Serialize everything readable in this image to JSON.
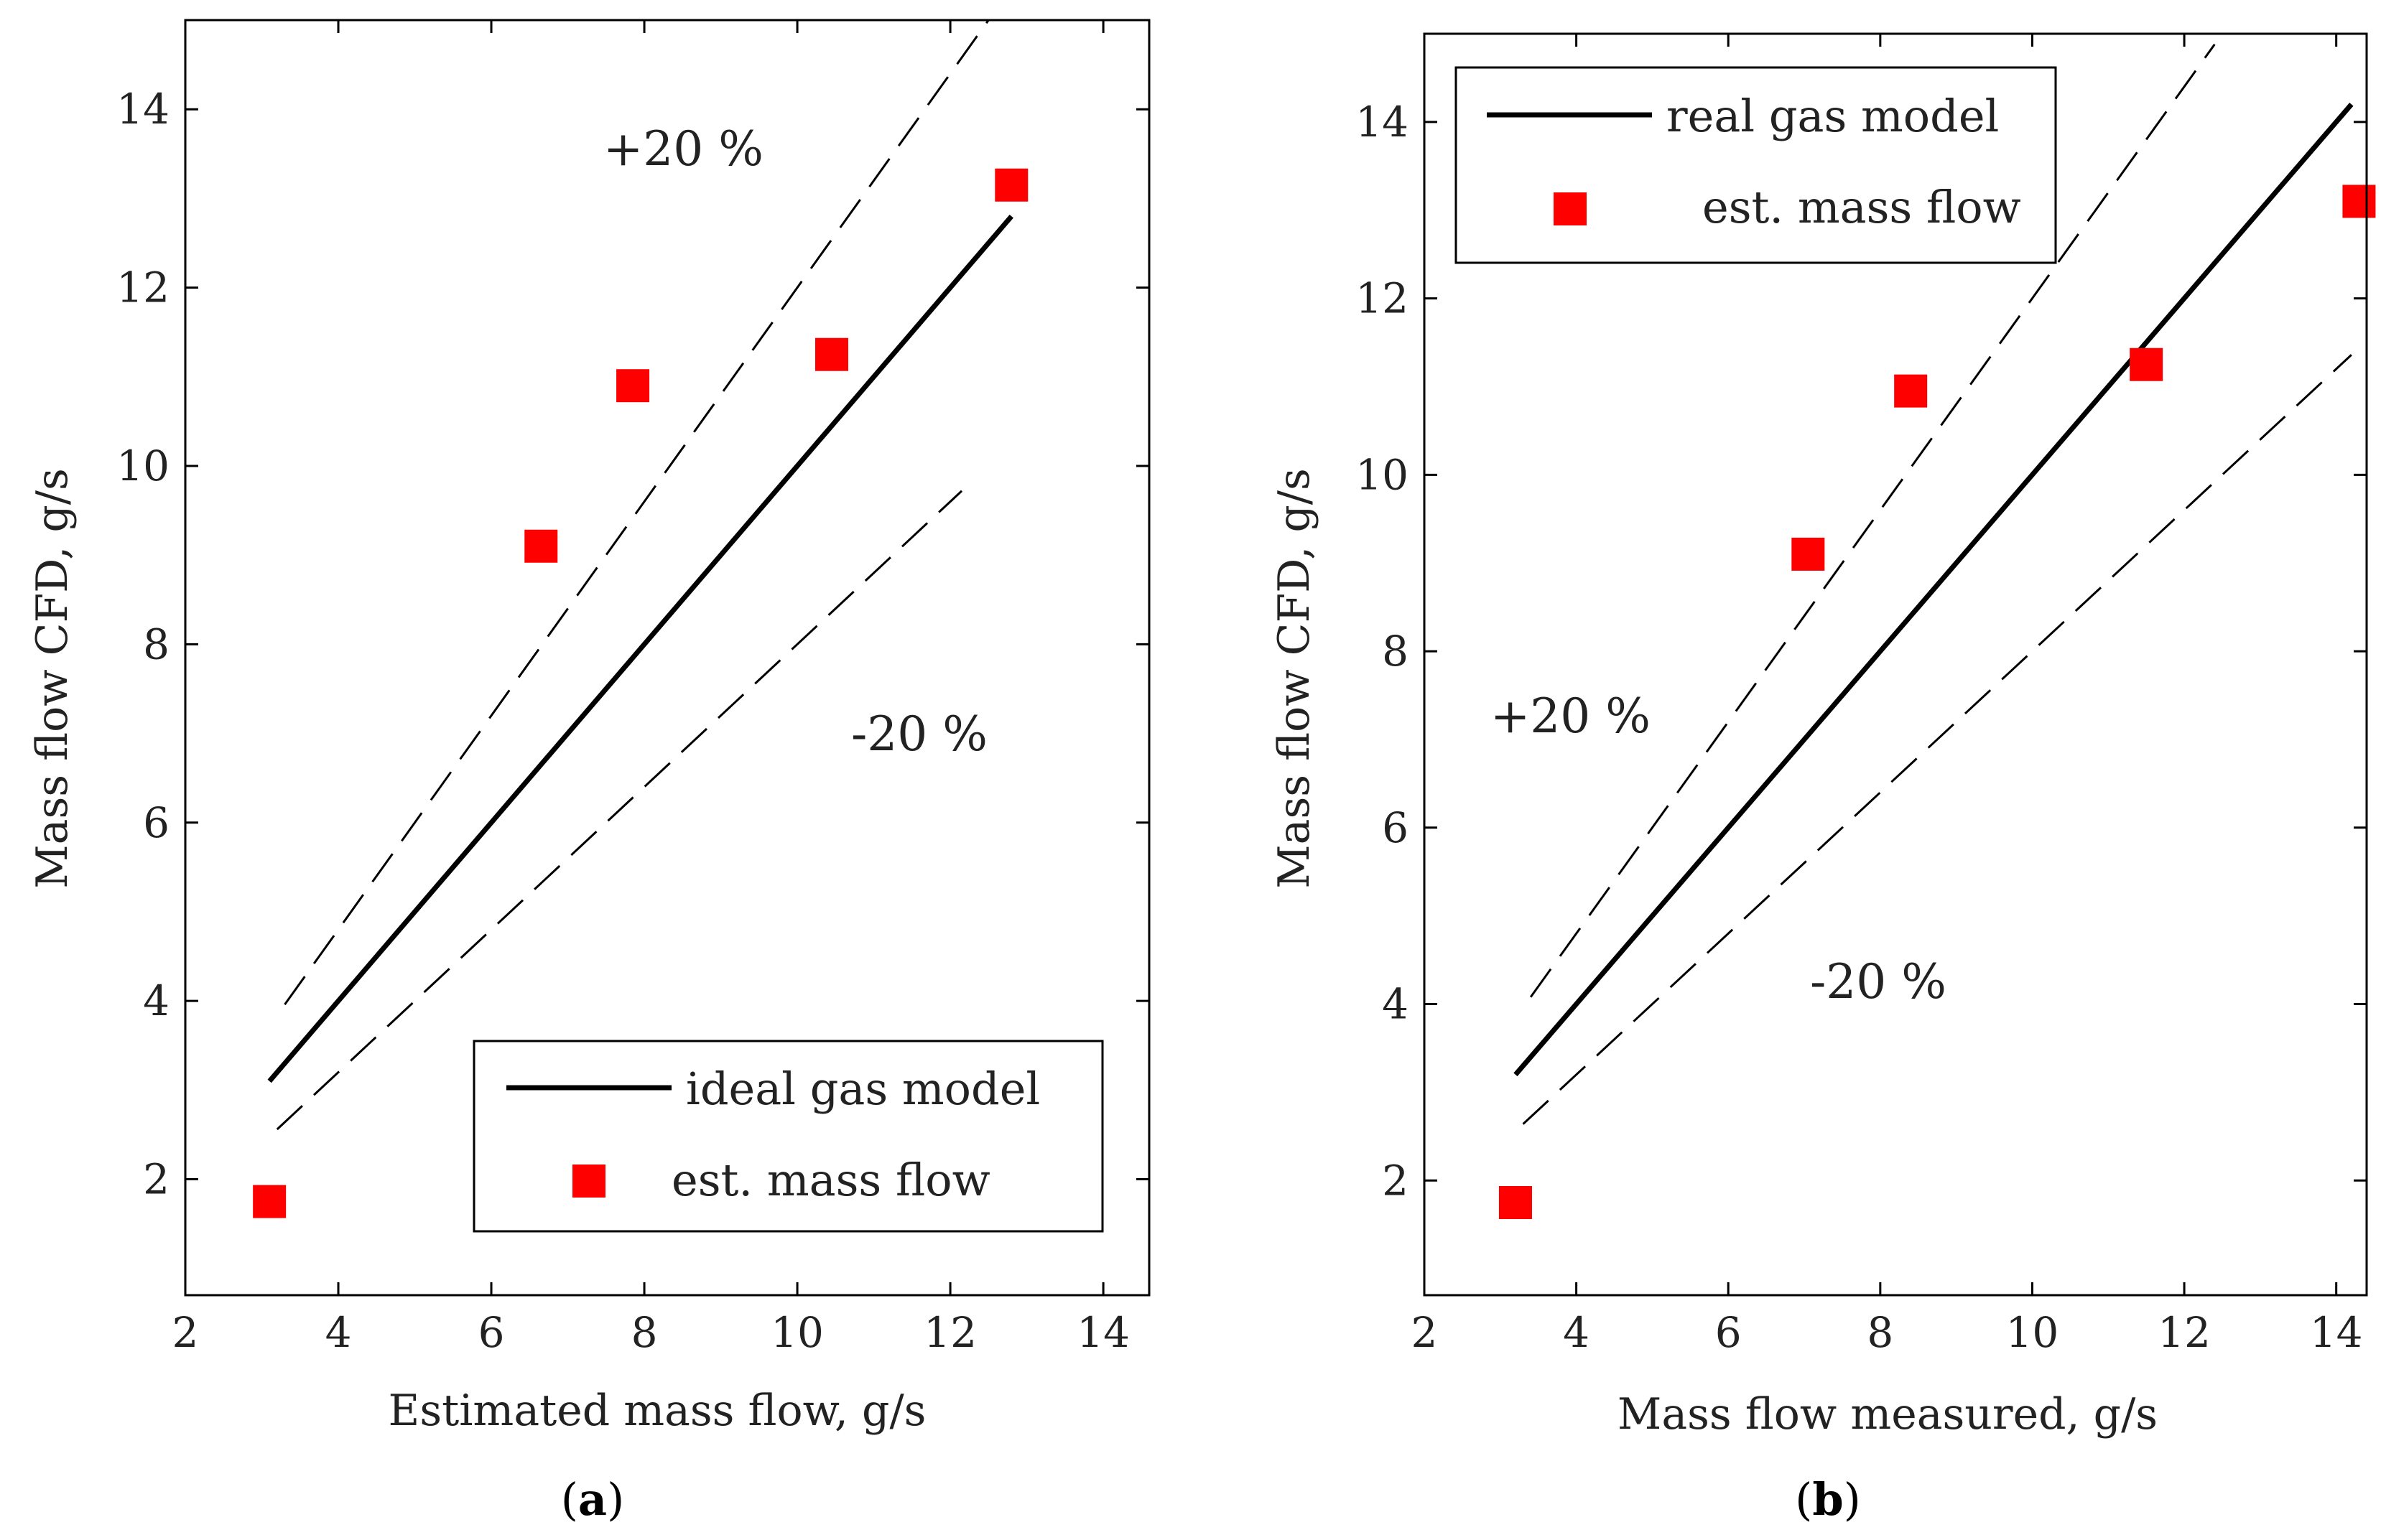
{
  "chart_data": [
    {
      "type": "scatter",
      "panel": "(a)",
      "caption_prefix": "(",
      "caption_letter": "a",
      "caption_suffix": ")",
      "xlabel": "Estimated mass flow, g/s",
      "ylabel": "Mass flow CFD, g/s",
      "xlim": [
        2,
        14.6
      ],
      "ylim": [
        0.7,
        15
      ],
      "xticks": [
        2,
        4,
        6,
        8,
        10,
        12,
        14
      ],
      "yticks": [
        2,
        4,
        6,
        8,
        10,
        12,
        14
      ],
      "annotation_plus": "+20 %",
      "annotation_minus": "-20 %",
      "legend_position": "bottom-right",
      "series": [
        {
          "name": "ideal gas model",
          "kind": "line",
          "color": "#000000",
          "x": [
            3.1,
            12.8
          ],
          "y": [
            3.1,
            12.8
          ]
        },
        {
          "name": "est. mass flow",
          "kind": "marker",
          "color": "#ff0000",
          "x": [
            3.1,
            6.65,
            7.85,
            10.45,
            12.8
          ],
          "y": [
            1.75,
            9.1,
            10.9,
            11.25,
            13.15
          ]
        }
      ],
      "bands": [
        {
          "name": "+20 %",
          "factor": 1.2,
          "from": 3.3,
          "to": 12.55
        },
        {
          "name": "-20 %",
          "factor": 0.8,
          "from": 3.2,
          "to": 12.15
        }
      ]
    },
    {
      "type": "scatter",
      "panel": "(b)",
      "caption_prefix": "(",
      "caption_letter": "b",
      "caption_suffix": ")",
      "xlabel": "Mass flow measured, g/s",
      "ylabel": "Mass flow CFD, g/s",
      "xlim": [
        2,
        14.4
      ],
      "ylim": [
        0.7,
        15
      ],
      "xticks": [
        2,
        4,
        6,
        8,
        10,
        12,
        14
      ],
      "yticks": [
        2,
        4,
        6,
        8,
        10,
        12,
        14
      ],
      "annotation_plus": "+20 %",
      "annotation_minus": "-20 %",
      "legend_position": "top-left",
      "series": [
        {
          "name": "real gas model",
          "kind": "line",
          "color": "#000000",
          "x": [
            3.2,
            14.2
          ],
          "y": [
            3.2,
            14.2
          ]
        },
        {
          "name": "est. mass flow",
          "kind": "marker",
          "color": "#ff0000",
          "x": [
            3.2,
            7.05,
            8.4,
            11.5,
            14.3
          ],
          "y": [
            1.75,
            9.1,
            10.95,
            11.25,
            13.1
          ]
        }
      ],
      "bands": [
        {
          "name": "+20 %",
          "factor": 1.2,
          "from": 3.4,
          "to": 12.4
        },
        {
          "name": "-20 %",
          "factor": 0.8,
          "from": 3.3,
          "to": 14.2
        }
      ]
    }
  ]
}
